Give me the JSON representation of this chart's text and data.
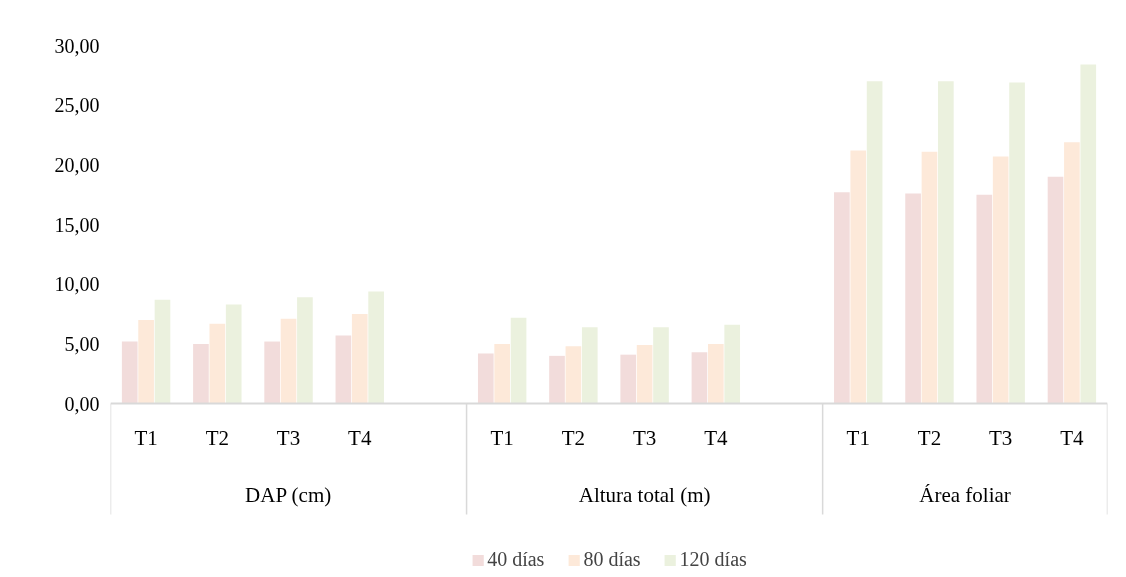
{
  "chart_data": {
    "type": "bar",
    "categories": [
      "T1",
      "T2",
      "T3",
      "T4",
      null,
      "T1",
      "T2",
      "T3",
      "T4",
      null,
      "T1",
      "T2",
      "T3",
      "T4"
    ],
    "series": [
      {
        "name": "40 días",
        "color": "#f2dcdb",
        "values": [
          5.2,
          5.0,
          5.2,
          5.7,
          null,
          4.2,
          4.0,
          4.1,
          4.3,
          null,
          17.7,
          17.6,
          17.5,
          19.0
        ]
      },
      {
        "name": "80 días",
        "color": "#fde9d9",
        "values": [
          7.0,
          6.7,
          7.1,
          7.5,
          null,
          5.0,
          4.8,
          4.9,
          5.0,
          null,
          21.2,
          21.1,
          20.7,
          21.9
        ]
      },
      {
        "name": "120 días",
        "color": "#ebf1de",
        "values": [
          8.7,
          8.3,
          8.9,
          9.4,
          null,
          7.2,
          6.4,
          6.4,
          6.6,
          null,
          27.0,
          27.0,
          26.9,
          28.4
        ]
      }
    ],
    "annotations": [
      "DAP (cm)",
      "Altura total (m)",
      "Área foliar"
    ],
    "ylim": [
      0,
      30
    ],
    "yticks": [
      {
        "value": 0,
        "label": "0,00"
      },
      {
        "value": 5,
        "label": "5,00"
      },
      {
        "value": 10,
        "label": "10,00"
      },
      {
        "value": 15,
        "label": "15,00"
      },
      {
        "value": 20,
        "label": "20,00"
      },
      {
        "value": 25,
        "label": "25,00"
      },
      {
        "value": 30,
        "label": "30,00"
      }
    ],
    "grid": false,
    "legend": "bottom"
  }
}
